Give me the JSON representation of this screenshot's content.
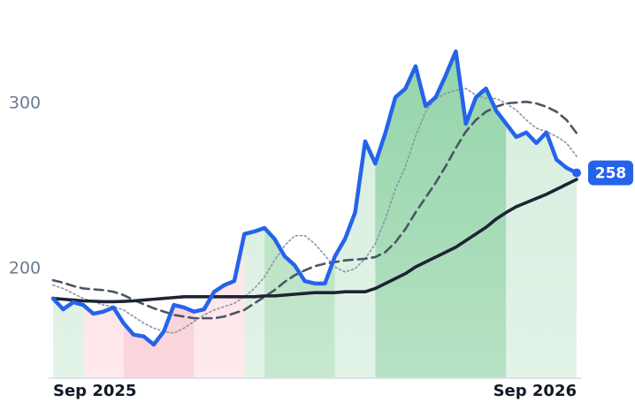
{
  "chart_data": {
    "type": "line",
    "categories": [
      "Sep 2025",
      null,
      null,
      null,
      null,
      null,
      null,
      null,
      null,
      null,
      null,
      null,
      null,
      null,
      null,
      null,
      null,
      null,
      null,
      null,
      null,
      null,
      null,
      null,
      null,
      null,
      null,
      null,
      null,
      null,
      null,
      null,
      null,
      null,
      null,
      null,
      null,
      null,
      null,
      null,
      null,
      null,
      null,
      null,
      null,
      null,
      null,
      null,
      null,
      null,
      null,
      null,
      "Sep 2026"
    ],
    "series": [
      {
        "color": "#2563eb",
        "values": [
          182,
          175.4,
          179.7,
          178,
          172.7,
          174,
          176.5,
          167,
          160,
          159,
          154,
          162,
          178,
          176.5,
          174,
          175.4,
          186,
          190,
          192.5,
          221,
          222.5,
          224.6,
          218,
          207.5,
          202,
          192.5,
          191,
          191,
          207.5,
          218,
          234,
          277,
          263.6,
          282,
          303.7,
          309,
          322.5,
          298.4,
          303.7,
          317,
          331.5,
          287.7,
          303.7,
          309,
          295.7,
          287.7,
          279.7,
          282.4,
          276,
          282.4,
          266,
          261,
          258
        ]
      },
      {
        "color": "#8a94a6",
        "values": [
          190,
          188,
          185,
          182,
          180,
          178,
          177,
          175,
          171,
          167,
          164,
          162,
          161,
          164,
          168,
          172,
          175,
          177,
          179,
          183,
          188,
          195,
          205,
          214,
          220,
          220,
          215,
          208,
          201,
          198,
          200,
          206,
          215,
          230,
          248,
          262,
          280,
          295,
          303,
          306,
          308,
          309,
          305,
          303,
          303,
          300,
          296,
          290,
          285,
          283,
          280,
          276,
          268
        ]
      },
      {
        "color": "#4b5563",
        "values": [
          193,
          191.5,
          189.5,
          188,
          187.5,
          187,
          186,
          184,
          181,
          178.5,
          176,
          174,
          172,
          171,
          170,
          170,
          170,
          171,
          173,
          175,
          179,
          183,
          187,
          192,
          196,
          199,
          201.5,
          203,
          204,
          205,
          205.5,
          206,
          207,
          210,
          216,
          224,
          234,
          243,
          252,
          262,
          273,
          283,
          290,
          295,
          298,
          300,
          300.5,
          301,
          300,
          298,
          295,
          290,
          282
        ]
      },
      {
        "color": "#1e2433",
        "values": [
          182,
          181.5,
          181,
          180.5,
          180.3,
          180,
          180,
          180.2,
          180.5,
          181,
          181.5,
          182,
          182.5,
          183,
          183,
          183,
          183,
          183,
          183,
          183,
          183,
          183.5,
          183.5,
          184,
          184.5,
          185,
          185.5,
          185.5,
          185.5,
          186,
          186,
          186,
          188,
          191,
          194,
          197,
          201,
          204,
          207,
          210,
          213,
          217,
          221,
          225,
          230,
          234,
          237.5,
          240,
          242.5,
          245,
          248,
          251,
          254
        ]
      }
    ],
    "bands": [
      {
        "start": 0,
        "end": 3,
        "color": "#d3eddb"
      },
      {
        "start": 3,
        "end": 7,
        "color": "#fddde3"
      },
      {
        "start": 7,
        "end": 14,
        "color": "#f8c2cd"
      },
      {
        "start": 14,
        "end": 19,
        "color": "#fddde3"
      },
      {
        "start": 19,
        "end": 21,
        "color": "#d3eddb"
      },
      {
        "start": 21,
        "end": 28,
        "color": "#a8dcb6"
      },
      {
        "start": 28,
        "end": 32,
        "color": "#d3eddb"
      },
      {
        "start": 32,
        "end": 45,
        "color": "#8fd2a5"
      },
      {
        "start": 45,
        "end": 52,
        "color": "#d3eddb"
      }
    ],
    "ylim": [
      133.7,
      362.6
    ],
    "yticks": [
      200,
      300
    ]
  }
}
